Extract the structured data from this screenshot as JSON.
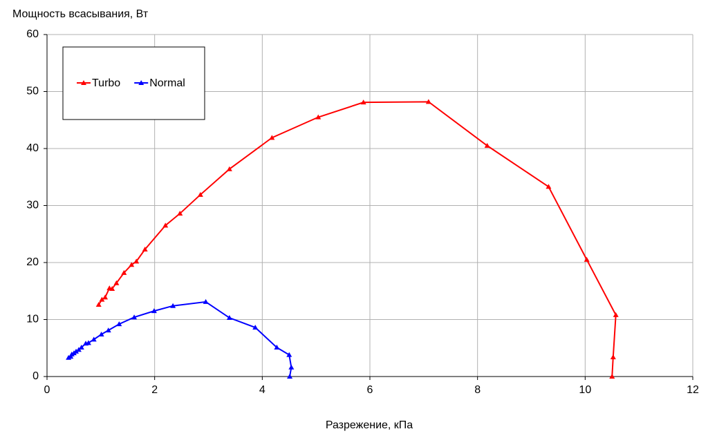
{
  "chart_data": {
    "type": "line",
    "y_label": "Мощность всасывания, Вт",
    "x_label": "Разрежение, кПа",
    "xlim": [
      0,
      12
    ],
    "ylim": [
      0,
      60
    ],
    "xticks": [
      0,
      2,
      4,
      6,
      8,
      10,
      12
    ],
    "yticks": [
      0,
      10,
      20,
      30,
      40,
      50,
      60
    ],
    "grid": true,
    "legend": "upper left",
    "series": [
      {
        "name": "Turbo",
        "color": "#ff0000",
        "x": [
          0.96,
          1.02,
          1.08,
          1.16,
          1.21,
          1.29,
          1.43,
          1.57,
          1.66,
          1.82,
          2.2,
          2.47,
          2.85,
          3.39,
          4.18,
          5.04,
          5.88,
          7.09,
          8.18,
          9.32,
          10.03,
          10.57,
          10.52,
          10.5
        ],
        "values": [
          12.6,
          13.5,
          13.9,
          15.5,
          15.4,
          16.4,
          18.2,
          19.6,
          20.2,
          22.3,
          26.5,
          28.6,
          31.9,
          36.4,
          41.9,
          45.5,
          48.1,
          48.2,
          40.5,
          33.3,
          20.5,
          10.8,
          3.4,
          0
        ]
      },
      {
        "name": "Normal",
        "color": "#0000ff",
        "x": [
          0.4,
          0.44,
          0.46,
          0.5,
          0.54,
          0.59,
          0.64,
          0.72,
          0.77,
          0.87,
          1.01,
          1.14,
          1.34,
          1.62,
          1.99,
          2.34,
          2.95,
          3.39,
          3.87,
          4.27,
          4.5,
          4.54,
          4.51
        ],
        "values": [
          3.3,
          3.5,
          3.9,
          4.1,
          4.4,
          4.7,
          5.1,
          5.8,
          5.9,
          6.5,
          7.4,
          8.1,
          9.2,
          10.4,
          11.5,
          12.4,
          13.1,
          10.3,
          8.6,
          5.1,
          3.8,
          1.6,
          0
        ]
      }
    ]
  }
}
